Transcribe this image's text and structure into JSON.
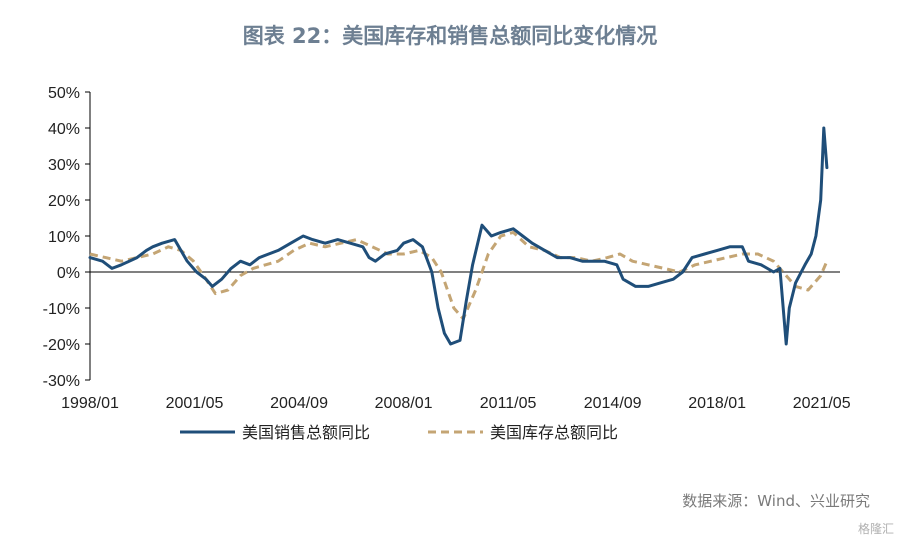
{
  "page": {
    "title": "图表 22：美国库存和销售总额同比变化情况",
    "source": "数据来源：Wind、兴业研究",
    "watermark": "格隆汇"
  },
  "chart_data": {
    "type": "line",
    "title": "图表 22：美国库存和销售总额同比变化情况",
    "xlabel": "",
    "ylabel": "",
    "y_unit": "%",
    "ylim": [
      -30,
      50
    ],
    "yticks": [
      -30,
      -20,
      -10,
      0,
      10,
      20,
      30,
      40,
      50
    ],
    "ytick_labels": [
      "-30%",
      "-20%",
      "-10%",
      "0%",
      "10%",
      "20%",
      "30%",
      "40%",
      "50%"
    ],
    "xlim": [
      1998.0,
      2021.917
    ],
    "xticks": [
      1998.0,
      2001.333,
      2004.667,
      2008.0,
      2011.333,
      2014.667,
      2018.0,
      2021.333
    ],
    "xtick_labels": [
      "1998/01",
      "2001/05",
      "2004/09",
      "2008/01",
      "2011/05",
      "2014/09",
      "2018/01",
      "2021/05"
    ],
    "grid": false,
    "legend_position": "bottom",
    "colors": {
      "sales": "#1f4e79",
      "inventory": "#c4a574"
    },
    "series": [
      {
        "name": "美国销售总额同比",
        "style": "solid",
        "points": [
          [
            1998.0,
            4
          ],
          [
            1998.4,
            3
          ],
          [
            1998.7,
            1
          ],
          [
            1999.0,
            2
          ],
          [
            1999.5,
            4
          ],
          [
            1999.8,
            6
          ],
          [
            2000.0,
            7
          ],
          [
            2000.3,
            8
          ],
          [
            2000.7,
            9
          ],
          [
            2000.9,
            6
          ],
          [
            2001.1,
            3
          ],
          [
            2001.4,
            0
          ],
          [
            2001.7,
            -2
          ],
          [
            2001.9,
            -4
          ],
          [
            2002.2,
            -2
          ],
          [
            2002.5,
            1
          ],
          [
            2002.8,
            3
          ],
          [
            2003.1,
            2
          ],
          [
            2003.4,
            4
          ],
          [
            2003.7,
            5
          ],
          [
            2004.0,
            6
          ],
          [
            2004.4,
            8
          ],
          [
            2004.8,
            10
          ],
          [
            2005.1,
            9
          ],
          [
            2005.5,
            8
          ],
          [
            2005.9,
            9
          ],
          [
            2006.3,
            8
          ],
          [
            2006.7,
            7
          ],
          [
            2006.9,
            4
          ],
          [
            2007.1,
            3
          ],
          [
            2007.4,
            5
          ],
          [
            2007.8,
            6
          ],
          [
            2008.0,
            8
          ],
          [
            2008.3,
            9
          ],
          [
            2008.6,
            7
          ],
          [
            2008.9,
            0
          ],
          [
            2009.1,
            -10
          ],
          [
            2009.3,
            -17
          ],
          [
            2009.5,
            -20
          ],
          [
            2009.8,
            -19
          ],
          [
            2010.0,
            -8
          ],
          [
            2010.2,
            2
          ],
          [
            2010.5,
            13
          ],
          [
            2010.8,
            10
          ],
          [
            2011.1,
            11
          ],
          [
            2011.5,
            12
          ],
          [
            2011.8,
            10
          ],
          [
            2012.1,
            8
          ],
          [
            2012.5,
            6
          ],
          [
            2012.9,
            4
          ],
          [
            2013.3,
            4
          ],
          [
            2013.7,
            3
          ],
          [
            2014.0,
            3
          ],
          [
            2014.4,
            3
          ],
          [
            2014.8,
            2
          ],
          [
            2015.0,
            -2
          ],
          [
            2015.4,
            -4
          ],
          [
            2015.8,
            -4
          ],
          [
            2016.2,
            -3
          ],
          [
            2016.6,
            -2
          ],
          [
            2016.9,
            0
          ],
          [
            2017.2,
            4
          ],
          [
            2017.6,
            5
          ],
          [
            2018.0,
            6
          ],
          [
            2018.4,
            7
          ],
          [
            2018.8,
            7
          ],
          [
            2019.0,
            3
          ],
          [
            2019.4,
            2
          ],
          [
            2019.8,
            0
          ],
          [
            2020.0,
            1
          ],
          [
            2020.2,
            -20
          ],
          [
            2020.3,
            -10
          ],
          [
            2020.5,
            -3
          ],
          [
            2020.8,
            2
          ],
          [
            2021.0,
            5
          ],
          [
            2021.15,
            10
          ],
          [
            2021.3,
            20
          ],
          [
            2021.4,
            40
          ],
          [
            2021.5,
            29
          ]
        ]
      },
      {
        "name": "美国库存总额同比",
        "style": "dashed",
        "points": [
          [
            1998.0,
            5
          ],
          [
            1998.5,
            4
          ],
          [
            1999.0,
            3
          ],
          [
            1999.5,
            4
          ],
          [
            2000.0,
            5
          ],
          [
            2000.5,
            7
          ],
          [
            2000.9,
            6
          ],
          [
            2001.3,
            3
          ],
          [
            2001.7,
            -2
          ],
          [
            2002.0,
            -6
          ],
          [
            2002.4,
            -5
          ],
          [
            2002.8,
            -1
          ],
          [
            2003.2,
            1
          ],
          [
            2003.6,
            2
          ],
          [
            2004.0,
            3
          ],
          [
            2004.5,
            6
          ],
          [
            2005.0,
            8
          ],
          [
            2005.5,
            7
          ],
          [
            2006.0,
            8
          ],
          [
            2006.5,
            9
          ],
          [
            2007.0,
            7
          ],
          [
            2007.5,
            5
          ],
          [
            2008.0,
            5
          ],
          [
            2008.5,
            6
          ],
          [
            2008.9,
            4
          ],
          [
            2009.2,
            0
          ],
          [
            2009.6,
            -10
          ],
          [
            2009.9,
            -13
          ],
          [
            2010.3,
            -5
          ],
          [
            2010.7,
            5
          ],
          [
            2011.1,
            10
          ],
          [
            2011.5,
            11
          ],
          [
            2012.0,
            7
          ],
          [
            2012.5,
            6
          ],
          [
            2013.0,
            4
          ],
          [
            2013.5,
            4
          ],
          [
            2014.0,
            3
          ],
          [
            2014.5,
            4
          ],
          [
            2014.9,
            5
          ],
          [
            2015.3,
            3
          ],
          [
            2015.8,
            2
          ],
          [
            2016.3,
            1
          ],
          [
            2016.8,
            0
          ],
          [
            2017.3,
            2
          ],
          [
            2017.8,
            3
          ],
          [
            2018.3,
            4
          ],
          [
            2018.8,
            5
          ],
          [
            2019.3,
            5
          ],
          [
            2019.8,
            3
          ],
          [
            2020.1,
            0
          ],
          [
            2020.5,
            -4
          ],
          [
            2020.9,
            -5
          ],
          [
            2021.3,
            -1
          ],
          [
            2021.5,
            3
          ]
        ]
      }
    ]
  }
}
